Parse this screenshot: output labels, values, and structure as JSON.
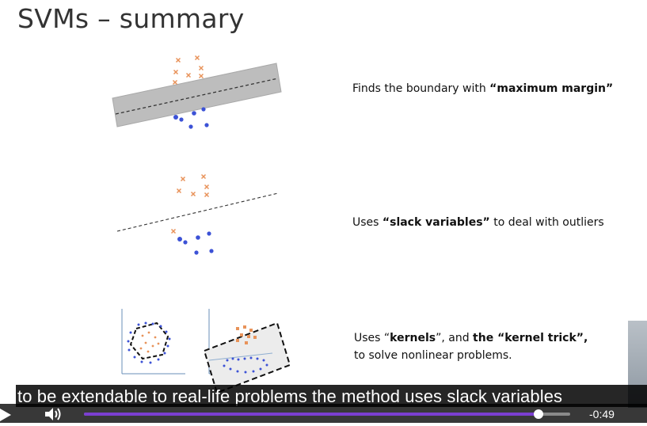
{
  "slide": {
    "title": "SVMs – summary",
    "items": [
      {
        "pre": "Finds the boundary with ",
        "bold": "“maximum margin”",
        "post": ""
      },
      {
        "pre": "Uses ",
        "bold": "“slack variables”",
        "post": " to deal with outliers"
      },
      {
        "line1_pre": "Uses “",
        "line1_bold1": "kernels",
        "line1_mid": "”, and ",
        "line1_bold2": "the “kernel trick”,",
        "line2": "to solve nonlinear problems."
      }
    ]
  },
  "colors": {
    "cross": "#e8935a",
    "dot": "#3c52d6",
    "margin_band": "#b9b9b9",
    "progress": "#7b3fd1"
  },
  "video": {
    "caption": "to be extendable to real-life problems the method uses slack variables",
    "time_remaining": "-0:49",
    "progress": 0.935,
    "play_icon": "play-icon",
    "volume_icon": "volume-icon"
  }
}
